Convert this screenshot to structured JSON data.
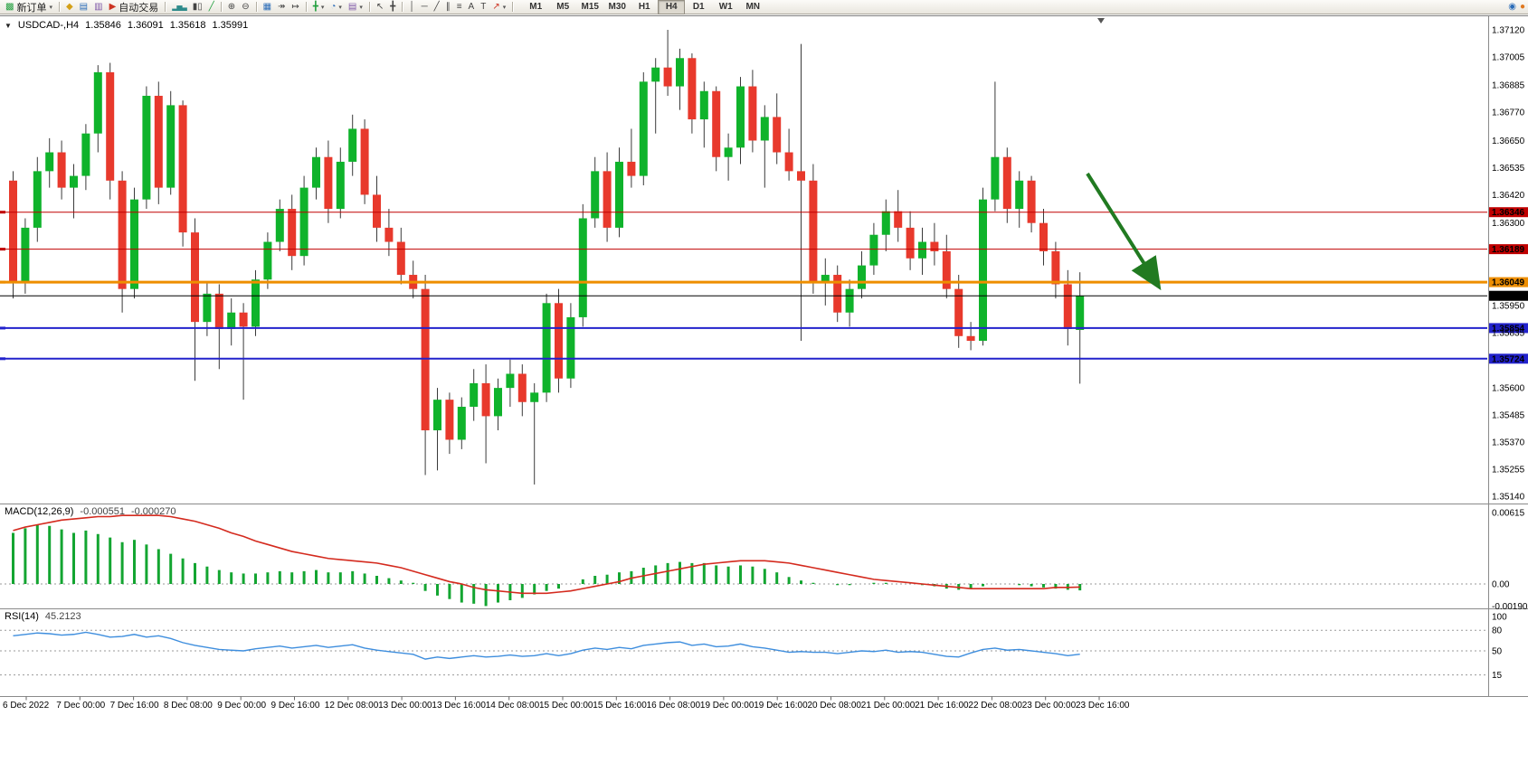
{
  "toolbar": {
    "new_order_label": "新订单",
    "autotrading_label": "自动交易",
    "timeframes": [
      "M1",
      "M5",
      "M15",
      "M30",
      "H1",
      "H4",
      "D1",
      "W1",
      "MN"
    ],
    "active_timeframe": "H4"
  },
  "icons": {
    "new_order": "▩",
    "dropdown": "▾",
    "market_watch": "◆",
    "data_window": "▤",
    "navigator": "▥",
    "autotrading": "▶",
    "bars": "▂▅▃",
    "candles": "▮▯",
    "line_chart": "╱",
    "zoom_in": "⊕",
    "zoom_out": "⊖",
    "tile": "▦",
    "cascade": "▧",
    "arrange": "▨",
    "auto_scroll": "↠",
    "chart_shift": "↦",
    "add_indicator": "╋",
    "periods": "◔",
    "templates": "▤",
    "cursor": "↖",
    "crosshair": "╋",
    "vline": "│",
    "hline": "─",
    "trendline": "╱",
    "channel": "∥",
    "fibonacci": "≡",
    "text": "A",
    "label": "T",
    "arrows": "↗",
    "community": "◉",
    "news": "●",
    "title_dropdown": "▼"
  },
  "chart": {
    "symbol_title": "USDCAD-,H4",
    "ohlc": {
      "open": "1.35846",
      "high": "1.36091",
      "low": "1.35618",
      "close": "1.35991"
    },
    "price_axis_labels": [
      "1.37120",
      "1.37005",
      "1.36885",
      "1.36770",
      "1.36650",
      "1.36535",
      "1.36420",
      "1.36300",
      "1.35950",
      "1.35835",
      "1.35600",
      "1.35485",
      "1.35370",
      "1.35255",
      "1.35140"
    ],
    "levels": [
      {
        "label": "1.36346",
        "price": 1.36346,
        "color": "#C00000",
        "width": 1
      },
      {
        "label": "1.36189",
        "price": 1.36189,
        "color": "#C00000",
        "width": 1
      },
      {
        "label": "1.36049",
        "price": 1.36049,
        "color": "#EE8E00",
        "width": 3
      },
      {
        "label": "1.35854",
        "price": 1.35854,
        "color": "#2222CC",
        "width": 2
      },
      {
        "label": "1.35724",
        "price": 1.35724,
        "color": "#2222CC",
        "width": 2
      }
    ],
    "current_price": {
      "label": "1.35991",
      "price": 1.35991,
      "color": "#000000"
    },
    "time_axis_labels": [
      "6 Dec 2022",
      "7 Dec 00:00",
      "7 Dec 16:00",
      "8 Dec 08:00",
      "9 Dec 00:00",
      "9 Dec 16:00",
      "12 Dec 08:00",
      "13 Dec 00:00",
      "13 Dec 16:00",
      "14 Dec 08:00",
      "15 Dec 00:00",
      "15 Dec 16:00",
      "16 Dec 08:00",
      "19 Dec 00:00",
      "19 Dec 16:00",
      "20 Dec 08:00",
      "21 Dec 00:00",
      "21 Dec 16:00",
      "22 Dec 08:00",
      "23 Dec 00:00",
      "23 Dec 16:00"
    ],
    "annotation_arrow": {
      "color": "#217A21"
    }
  },
  "chart_data": {
    "type": "candlestick",
    "symbol": "USDCAD",
    "timeframe": "H4",
    "y_range": [
      1.3514,
      1.3712
    ],
    "up_color": "#0FB32B",
    "down_color": "#E8392C",
    "wick_color": "#3A3A3A",
    "candles": [
      [
        1.3648,
        1.3652,
        1.3598,
        1.3605
      ],
      [
        1.3605,
        1.3632,
        1.36,
        1.3628
      ],
      [
        1.3628,
        1.3658,
        1.3622,
        1.3652
      ],
      [
        1.3652,
        1.3666,
        1.3645,
        1.366
      ],
      [
        1.366,
        1.3665,
        1.364,
        1.3645
      ],
      [
        1.3645,
        1.3655,
        1.3632,
        1.365
      ],
      [
        1.365,
        1.3672,
        1.3644,
        1.3668
      ],
      [
        1.3668,
        1.3697,
        1.366,
        1.3694
      ],
      [
        1.3694,
        1.3698,
        1.364,
        1.3648
      ],
      [
        1.3648,
        1.3652,
        1.3592,
        1.3602
      ],
      [
        1.3602,
        1.3645,
        1.3598,
        1.364
      ],
      [
        1.364,
        1.3688,
        1.3636,
        1.3684
      ],
      [
        1.3684,
        1.369,
        1.3638,
        1.3645
      ],
      [
        1.3645,
        1.3686,
        1.3642,
        1.368
      ],
      [
        1.368,
        1.3682,
        1.362,
        1.3626
      ],
      [
        1.3626,
        1.3632,
        1.3563,
        1.3588
      ],
      [
        1.3588,
        1.3605,
        1.3582,
        1.36
      ],
      [
        1.36,
        1.3604,
        1.3568,
        1.3585
      ],
      [
        1.3585,
        1.3598,
        1.3578,
        1.3592
      ],
      [
        1.3592,
        1.3596,
        1.3555,
        1.3586
      ],
      [
        1.3586,
        1.361,
        1.3582,
        1.3606
      ],
      [
        1.3606,
        1.3626,
        1.3602,
        1.3622
      ],
      [
        1.3622,
        1.364,
        1.3618,
        1.3636
      ],
      [
        1.3636,
        1.3642,
        1.361,
        1.3616
      ],
      [
        1.3616,
        1.365,
        1.3612,
        1.3645
      ],
      [
        1.3645,
        1.3662,
        1.364,
        1.3658
      ],
      [
        1.3658,
        1.3665,
        1.363,
        1.3636
      ],
      [
        1.3636,
        1.3662,
        1.3632,
        1.3656
      ],
      [
        1.3656,
        1.3676,
        1.365,
        1.367
      ],
      [
        1.367,
        1.3674,
        1.3638,
        1.3642
      ],
      [
        1.3642,
        1.365,
        1.3622,
        1.3628
      ],
      [
        1.3628,
        1.3636,
        1.3616,
        1.3622
      ],
      [
        1.3622,
        1.3628,
        1.3604,
        1.3608
      ],
      [
        1.3608,
        1.3614,
        1.3598,
        1.3602
      ],
      [
        1.3602,
        1.3608,
        1.3523,
        1.3542
      ],
      [
        1.3542,
        1.356,
        1.3525,
        1.3555
      ],
      [
        1.3555,
        1.3558,
        1.3532,
        1.3538
      ],
      [
        1.3538,
        1.3556,
        1.3534,
        1.3552
      ],
      [
        1.3552,
        1.3568,
        1.3546,
        1.3562
      ],
      [
        1.3562,
        1.357,
        1.3528,
        1.3548
      ],
      [
        1.3548,
        1.3564,
        1.3542,
        1.356
      ],
      [
        1.356,
        1.3572,
        1.3552,
        1.3566
      ],
      [
        1.3566,
        1.357,
        1.3548,
        1.3554
      ],
      [
        1.3554,
        1.3562,
        1.3519,
        1.3558
      ],
      [
        1.3558,
        1.36,
        1.3554,
        1.3596
      ],
      [
        1.3596,
        1.3602,
        1.3558,
        1.3564
      ],
      [
        1.3564,
        1.3596,
        1.356,
        1.359
      ],
      [
        1.359,
        1.3638,
        1.3586,
        1.3632
      ],
      [
        1.3632,
        1.3658,
        1.3628,
        1.3652
      ],
      [
        1.3652,
        1.366,
        1.3622,
        1.3628
      ],
      [
        1.3628,
        1.3662,
        1.3624,
        1.3656
      ],
      [
        1.3656,
        1.367,
        1.3645,
        1.365
      ],
      [
        1.365,
        1.3694,
        1.3646,
        1.369
      ],
      [
        1.369,
        1.37,
        1.3668,
        1.3696
      ],
      [
        1.3696,
        1.3712,
        1.3684,
        1.3688
      ],
      [
        1.3688,
        1.3704,
        1.3678,
        1.37
      ],
      [
        1.37,
        1.3702,
        1.3668,
        1.3674
      ],
      [
        1.3674,
        1.369,
        1.3662,
        1.3686
      ],
      [
        1.3686,
        1.3688,
        1.3652,
        1.3658
      ],
      [
        1.3658,
        1.3668,
        1.3648,
        1.3662
      ],
      [
        1.3662,
        1.3692,
        1.3655,
        1.3688
      ],
      [
        1.3688,
        1.3695,
        1.366,
        1.3665
      ],
      [
        1.3665,
        1.368,
        1.3645,
        1.3675
      ],
      [
        1.3675,
        1.3685,
        1.3655,
        1.366
      ],
      [
        1.366,
        1.367,
        1.3648,
        1.3652
      ],
      [
        1.3652,
        1.3706,
        1.358,
        1.3648
      ],
      [
        1.3648,
        1.3655,
        1.36,
        1.3605
      ],
      [
        1.3605,
        1.3615,
        1.3595,
        1.3608
      ],
      [
        1.3608,
        1.3612,
        1.3588,
        1.3592
      ],
      [
        1.3592,
        1.3606,
        1.3586,
        1.3602
      ],
      [
        1.3602,
        1.3618,
        1.3598,
        1.3612
      ],
      [
        1.3612,
        1.363,
        1.3608,
        1.3625
      ],
      [
        1.3625,
        1.364,
        1.3618,
        1.3635
      ],
      [
        1.3635,
        1.3644,
        1.3622,
        1.3628
      ],
      [
        1.3628,
        1.3635,
        1.361,
        1.3615
      ],
      [
        1.3615,
        1.3628,
        1.3608,
        1.3622
      ],
      [
        1.3622,
        1.363,
        1.3612,
        1.3618
      ],
      [
        1.3618,
        1.3625,
        1.3598,
        1.3602
      ],
      [
        1.3602,
        1.3608,
        1.3577,
        1.3582
      ],
      [
        1.3582,
        1.3588,
        1.3576,
        1.358
      ],
      [
        1.358,
        1.3645,
        1.3578,
        1.364
      ],
      [
        1.364,
        1.369,
        1.3635,
        1.3658
      ],
      [
        1.3658,
        1.3662,
        1.363,
        1.3636
      ],
      [
        1.3636,
        1.3652,
        1.3628,
        1.3648
      ],
      [
        1.3648,
        1.365,
        1.3626,
        1.363
      ],
      [
        1.363,
        1.3636,
        1.3612,
        1.3618
      ],
      [
        1.3618,
        1.3622,
        1.3598,
        1.3604
      ],
      [
        1.3604,
        1.361,
        1.3578,
        1.3585
      ],
      [
        1.35846,
        1.36091,
        1.35618,
        1.35991
      ]
    ],
    "indicators": {
      "macd": {
        "name": "MACD(12,26,9)",
        "main_value": "-0.000551",
        "signal_value": "-0.000270",
        "axis_labels": [
          "0.00615",
          "0.00",
          "-0.001906"
        ],
        "histogram_color": "#13A531",
        "signal_color": "#D42A1E",
        "histogram": [
          0.0044,
          0.0048,
          0.0051,
          0.005,
          0.0047,
          0.0044,
          0.0046,
          0.0043,
          0.004,
          0.0036,
          0.0038,
          0.0034,
          0.003,
          0.0026,
          0.0022,
          0.0018,
          0.0015,
          0.0012,
          0.001,
          0.0009,
          0.0009,
          0.001,
          0.0011,
          0.001,
          0.0011,
          0.0012,
          0.001,
          0.001,
          0.0011,
          0.0009,
          0.0007,
          0.0005,
          0.0003,
          0.0001,
          -0.0006,
          -0.001,
          -0.0013,
          -0.0016,
          -0.0017,
          -0.0019,
          -0.0016,
          -0.0014,
          -0.0012,
          -0.0009,
          -0.0006,
          -0.0004,
          0.0,
          0.0004,
          0.0007,
          0.0008,
          0.001,
          0.0011,
          0.0014,
          0.0016,
          0.0018,
          0.0019,
          0.0018,
          0.0018,
          0.0016,
          0.0015,
          0.0016,
          0.0015,
          0.0013,
          0.001,
          0.0006,
          0.0003,
          0.0001,
          0.0,
          -0.0001,
          -0.0001,
          0.0,
          0.0001,
          0.0001,
          0.0,
          0.0,
          -0.0001,
          -0.0002,
          -0.0004,
          -0.0005,
          -0.0004,
          -0.0002,
          0.0,
          0.0,
          -0.0001,
          -0.0002,
          -0.0003,
          -0.0004,
          -0.0005,
          -0.000551
        ],
        "signal": [
          0.0046,
          0.0049,
          0.0051,
          0.0053,
          0.0055,
          0.0056,
          0.0057,
          0.0058,
          0.0058,
          0.0059,
          0.0059,
          0.0059,
          0.0059,
          0.0058,
          0.0056,
          0.0054,
          0.0051,
          0.0048,
          0.0044,
          0.0041,
          0.0037,
          0.0034,
          0.0031,
          0.0028,
          0.0026,
          0.0024,
          0.0022,
          0.0021,
          0.002,
          0.0019,
          0.0018,
          0.0016,
          0.0014,
          0.0011,
          0.0008,
          0.0005,
          0.0002,
          0.0,
          -0.0003,
          -0.0005,
          -0.0006,
          -0.0007,
          -0.0008,
          -0.0008,
          -0.0008,
          -0.0007,
          -0.0006,
          -0.0004,
          -0.0002,
          0.0,
          0.0002,
          0.0005,
          0.0007,
          0.0009,
          0.0011,
          0.0013,
          0.0015,
          0.0017,
          0.0018,
          0.0019,
          0.002,
          0.002,
          0.002,
          0.0019,
          0.0018,
          0.0016,
          0.0014,
          0.0012,
          0.001,
          0.0008,
          0.0006,
          0.0004,
          0.0003,
          0.0002,
          0.0001,
          0.0,
          -0.0001,
          -0.0002,
          -0.0003,
          -0.0004,
          -0.0004,
          -0.0004,
          -0.0004,
          -0.0004,
          -0.0004,
          -0.0004,
          -0.0003,
          -0.0003,
          -0.00027
        ]
      },
      "rsi": {
        "name": "RSI(14)",
        "value": "45.2123",
        "axis_labels": [
          "100",
          "80",
          "50",
          "15"
        ],
        "levels": [
          80,
          50,
          15
        ],
        "line_color": "#3E8EDE",
        "values": [
          72,
          74,
          76,
          75,
          73,
          74,
          77,
          74,
          70,
          71,
          74,
          70,
          72,
          68,
          62,
          58,
          55,
          52,
          51,
          50,
          53,
          55,
          57,
          54,
          56,
          58,
          55,
          57,
          59,
          54,
          51,
          49,
          47,
          45,
          38,
          41,
          39,
          41,
          43,
          41,
          42,
          44,
          42,
          43,
          46,
          43,
          46,
          51,
          54,
          52,
          55,
          53,
          58,
          60,
          62,
          63,
          58,
          60,
          56,
          57,
          60,
          56,
          54,
          51,
          48,
          49,
          48,
          48,
          46,
          48,
          50,
          49,
          51,
          48,
          49,
          48,
          45,
          42,
          41,
          47,
          52,
          54,
          51,
          52,
          50,
          48,
          46,
          43,
          45.2123
        ]
      }
    }
  }
}
